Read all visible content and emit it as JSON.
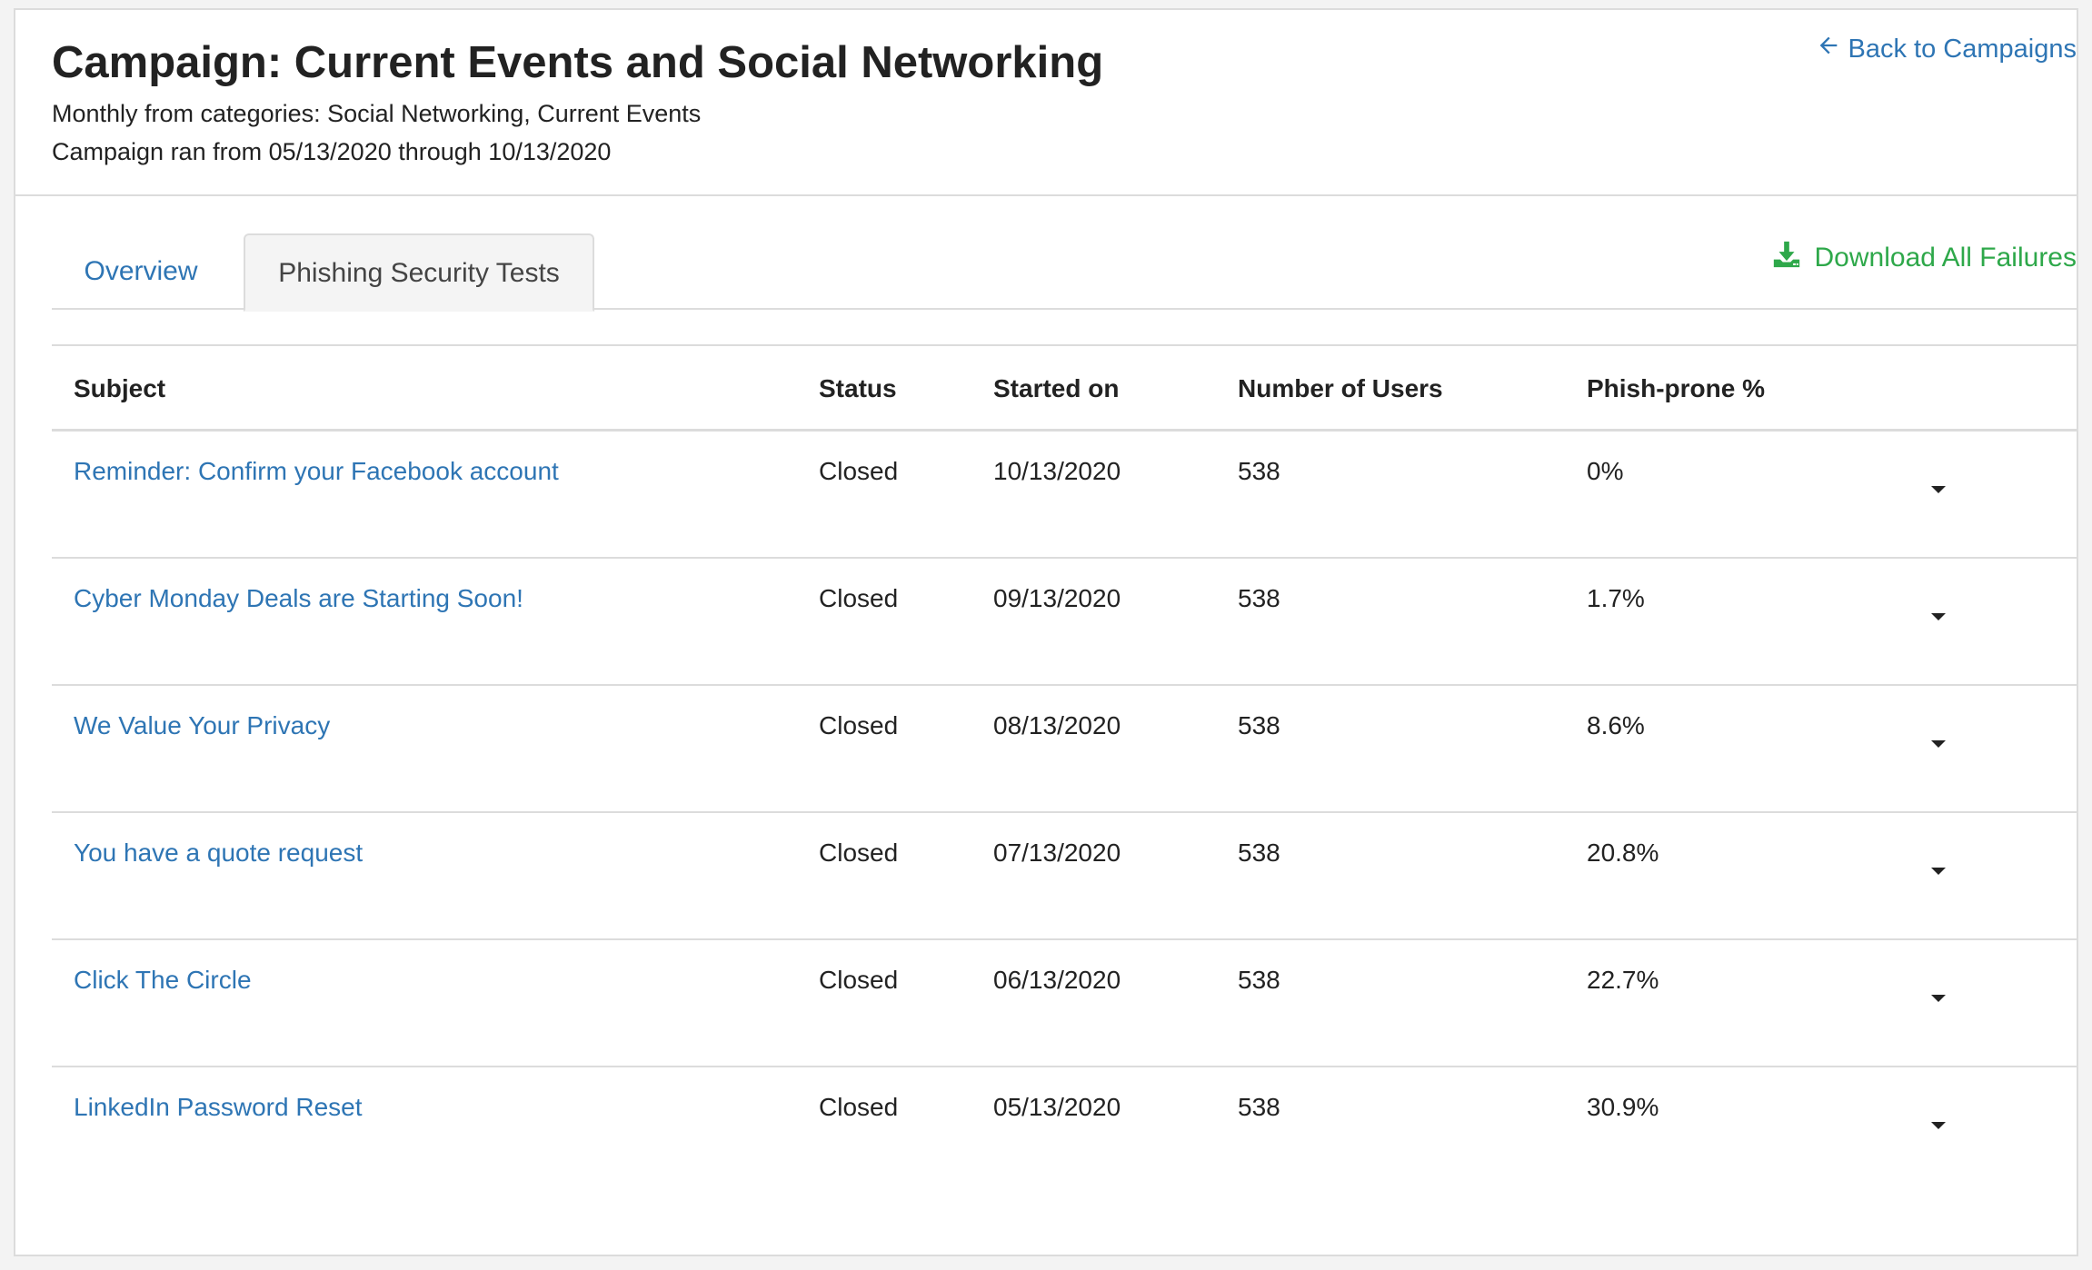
{
  "header": {
    "title": "Campaign: Current Events and Social Networking",
    "categories_line": "Monthly from categories: Social Networking, Current Events",
    "date_range_line": "Campaign ran from 05/13/2020 through 10/13/2020",
    "back_link": "Back to Campaigns"
  },
  "tabs": [
    {
      "label": "Overview",
      "active": false
    },
    {
      "label": "Phishing Security Tests",
      "active": true
    }
  ],
  "download_label": "Download All Failures",
  "table": {
    "columns": [
      "Subject",
      "Status",
      "Started on",
      "Number of Users",
      "Phish-prone %"
    ],
    "rows": [
      {
        "subject": "Reminder: Confirm your Facebook account",
        "status": "Closed",
        "started_on": "10/13/2020",
        "users": "538",
        "phish_prone": "0%"
      },
      {
        "subject": "Cyber Monday Deals are Starting Soon!",
        "status": "Closed",
        "started_on": "09/13/2020",
        "users": "538",
        "phish_prone": "1.7%"
      },
      {
        "subject": "We Value Your Privacy",
        "status": "Closed",
        "started_on": "08/13/2020",
        "users": "538",
        "phish_prone": "8.6%"
      },
      {
        "subject": "You have a quote request",
        "status": "Closed",
        "started_on": "07/13/2020",
        "users": "538",
        "phish_prone": "20.8%"
      },
      {
        "subject": "Click The Circle",
        "status": "Closed",
        "started_on": "06/13/2020",
        "users": "538",
        "phish_prone": "22.7%"
      },
      {
        "subject": "LinkedIn Password Reset",
        "status": "Closed",
        "started_on": "05/13/2020",
        "users": "538",
        "phish_prone": "30.9%"
      }
    ]
  },
  "colors": {
    "link": "#2e75b4",
    "download": "#2ea84a",
    "border": "#dcdcdc"
  },
  "icons": {
    "back": "arrow-left-icon",
    "download": "download-icon",
    "row_menu": "caret-down-icon"
  }
}
